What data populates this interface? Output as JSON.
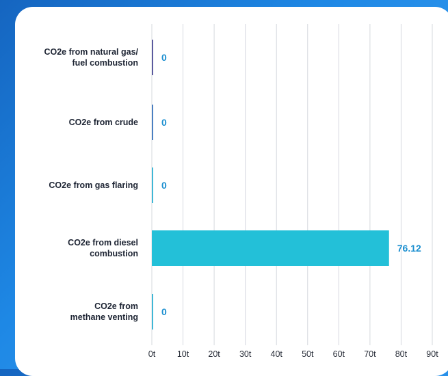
{
  "chart_data": {
    "type": "bar",
    "orientation": "horizontal",
    "categories": [
      [
        "CO2e from natural gas/",
        "fuel combustion"
      ],
      [
        "CO2e from crude"
      ],
      [
        "CO2e from gas flaring"
      ],
      [
        "CO2e from diesel",
        "combustion"
      ],
      [
        "CO2e from",
        "methane venting"
      ]
    ],
    "values": [
      0,
      0,
      0,
      76.12,
      0
    ],
    "value_labels": [
      "0",
      "0",
      "0",
      "76.12",
      "0"
    ],
    "xlim": [
      0,
      90
    ],
    "xticks": [
      "0t",
      "10t",
      "20t",
      "30t",
      "40t",
      "50t",
      "60t",
      "70t",
      "80t",
      "90t"
    ],
    "grid": true,
    "colors": {
      "bar": "#23c0d8",
      "zero_bars": [
        "#5b5a9e",
        "#4a7fc1",
        "#3fb7d6",
        "#23c0d8",
        "#3fb7d6"
      ],
      "value_label": "#1b8fd0",
      "grid": "#d5d8de"
    }
  }
}
